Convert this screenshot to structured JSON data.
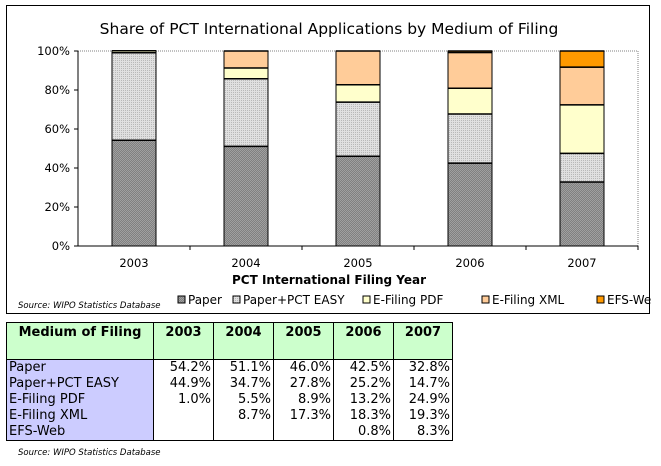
{
  "chart_data": {
    "type": "bar",
    "stacked": true,
    "title": "Share of PCT International Applications by Medium of Filing",
    "xlabel": "PCT International Filing Year",
    "ylabel": "",
    "ylim": [
      0,
      100
    ],
    "yticks": [
      "0%",
      "20%",
      "40%",
      "60%",
      "80%",
      "100%"
    ],
    "categories": [
      "2003",
      "2004",
      "2005",
      "2006",
      "2007"
    ],
    "series": [
      {
        "name": "Paper",
        "color": "#999999",
        "values": [
          54.2,
          51.1,
          46.0,
          42.5,
          32.8
        ]
      },
      {
        "name": "Paper+PCT EASY",
        "color": "#cccccc",
        "values": [
          44.9,
          34.7,
          27.8,
          25.2,
          14.7
        ]
      },
      {
        "name": "E-Filing PDF",
        "color": "#ffffcc",
        "values": [
          1.0,
          5.5,
          8.9,
          13.2,
          24.9
        ]
      },
      {
        "name": "E-Filing XML",
        "color": "#ffcc99",
        "values": [
          0,
          8.7,
          17.3,
          18.3,
          19.3
        ]
      },
      {
        "name": "EFS-Web",
        "color": "#ff9900",
        "values": [
          0,
          0,
          0,
          0.8,
          8.3
        ]
      }
    ],
    "legend_position": "bottom",
    "grid": false
  },
  "source_note": "Source: WIPO Statistics Database",
  "table": {
    "header": [
      "Medium of Filing",
      "2003",
      "2004",
      "2005",
      "2006",
      "2007"
    ],
    "rows": [
      {
        "label": "Paper",
        "cells": [
          "54.2%",
          "51.1%",
          "46.0%",
          "42.5%",
          "32.8%"
        ]
      },
      {
        "label": "Paper+PCT EASY",
        "cells": [
          "44.9%",
          "34.7%",
          "27.8%",
          "25.2%",
          "14.7%"
        ]
      },
      {
        "label": "E-Filing PDF",
        "cells": [
          "1.0%",
          "5.5%",
          "8.9%",
          "13.2%",
          "24.9%"
        ]
      },
      {
        "label": "E-Filing XML",
        "cells": [
          "",
          "8.7%",
          "17.3%",
          "18.3%",
          "19.3%"
        ]
      },
      {
        "label": "EFS-Web",
        "cells": [
          "",
          "",
          "",
          "0.8%",
          "8.3%"
        ]
      }
    ],
    "source_note": "Source: WIPO Statistics Database"
  }
}
